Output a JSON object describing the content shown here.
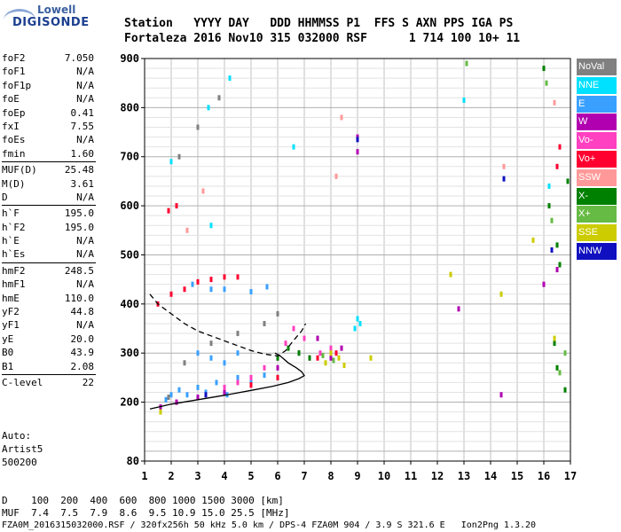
{
  "logo": {
    "line1": "Lowell",
    "line2": "DIGISONDE"
  },
  "header": {
    "row1": "Station   YYYY DAY   DDD HHMMSS P1  FFS S AXN PPS IGA PS",
    "row2": "Fortaleza 2016 Nov10 315 032000 RSF      1 714 100 10+ 11"
  },
  "params": [
    {
      "label": "foF2",
      "value": "7.050"
    },
    {
      "label": "foF1",
      "value": "N/A"
    },
    {
      "label": "foF1p",
      "value": "N/A"
    },
    {
      "label": "foE",
      "value": "N/A"
    },
    {
      "label": "foEp",
      "value": "0.41"
    },
    {
      "label": "fxI",
      "value": "7.55"
    },
    {
      "label": "foEs",
      "value": "N/A"
    },
    {
      "label": "fmin",
      "value": "1.60"
    },
    {
      "sep": true
    },
    {
      "label": "MUF(D)",
      "value": "25.48"
    },
    {
      "label": "M(D)",
      "value": "3.61"
    },
    {
      "label": "D",
      "value": "N/A"
    },
    {
      "sep": true
    },
    {
      "label": "h`F",
      "value": "195.0"
    },
    {
      "label": "h`F2",
      "value": "195.0"
    },
    {
      "label": "h`E",
      "value": "N/A"
    },
    {
      "label": "h`Es",
      "value": "N/A"
    },
    {
      "sep": true
    },
    {
      "label": "hmF2",
      "value": "248.5"
    },
    {
      "label": "hmF1",
      "value": "N/A"
    },
    {
      "label": "hmE",
      "value": "110.0"
    },
    {
      "label": "yF2",
      "value": "44.8"
    },
    {
      "label": "yF1",
      "value": "N/A"
    },
    {
      "label": "yE",
      "value": "20.0"
    },
    {
      "label": "B0",
      "value": "43.9"
    },
    {
      "label": "B1",
      "value": "2.08"
    },
    {
      "sep": true
    },
    {
      "label": "C-level",
      "value": "22"
    }
  ],
  "auto": {
    "line1": "Auto:",
    "line2": "Artist5",
    "line3": "500200"
  },
  "legend": [
    {
      "label": "NoVal",
      "color": "#808080"
    },
    {
      "label": "NNE",
      "color": "#00e0ff"
    },
    {
      "label": "E",
      "color": "#3aa0ff"
    },
    {
      "label": "W",
      "color": "#b000b0"
    },
    {
      "label": "Vo-",
      "color": "#ff40c0"
    },
    {
      "label": "Vo+",
      "color": "#ff0030"
    },
    {
      "label": "SSW",
      "color": "#ff9999"
    },
    {
      "label": "X-",
      "color": "#008000"
    },
    {
      "label": "X+",
      "color": "#66bb44"
    },
    {
      "label": "SSE",
      "color": "#cccc00"
    },
    {
      "label": "NNW",
      "color": "#1010c0"
    }
  ],
  "bottom": {
    "row1": "D    100  200  400  600  800 1000 1500 3000 [km]",
    "row2": "MUF  7.4  7.5  7.9  8.6  9.5 10.9 15.0 25.5 [MHz]"
  },
  "footer": "FZA0M_2016315032000.RSF / 320fx256h 50 kHz 5.0 km / DPS-4 FZA0M 904 / 3.9 S 321.6 E   Ion2Png 1.3.20",
  "chart_data": {
    "type": "scatter",
    "xlim": [
      1,
      17
    ],
    "ylim": [
      80,
      900
    ],
    "x_ticks": [
      1,
      2,
      3,
      4,
      5,
      6,
      7,
      8,
      9,
      10,
      11,
      12,
      13,
      14,
      15,
      16,
      17
    ],
    "y_ticks": [
      80,
      200,
      300,
      400,
      500,
      600,
      700,
      800,
      900
    ],
    "grid": true,
    "series": [
      {
        "name": "E",
        "color": "#3aa0ff",
        "points": [
          [
            1.8,
            205
          ],
          [
            2,
            215
          ],
          [
            2.3,
            225
          ],
          [
            2.6,
            215
          ],
          [
            3,
            230
          ],
          [
            3.3,
            220
          ],
          [
            3.7,
            240
          ],
          [
            4.1,
            215
          ],
          [
            4.5,
            250
          ],
          [
            5,
            240
          ],
          [
            5.5,
            255
          ],
          [
            6,
            250
          ],
          [
            3,
            300
          ],
          [
            3.5,
            290
          ],
          [
            4,
            280
          ],
          [
            4.5,
            300
          ],
          [
            2.8,
            440
          ],
          [
            3.5,
            430
          ],
          [
            4,
            430
          ],
          [
            5,
            425
          ],
          [
            5.6,
            435
          ]
        ]
      },
      {
        "name": "NNE",
        "color": "#00e0ff",
        "points": [
          [
            9,
            370
          ],
          [
            9.1,
            360
          ],
          [
            8.9,
            350
          ],
          [
            2,
            690
          ],
          [
            3.4,
            800
          ],
          [
            6.6,
            720
          ],
          [
            4.2,
            860
          ],
          [
            13,
            815
          ],
          [
            16.2,
            640
          ],
          [
            3.5,
            560
          ]
        ]
      },
      {
        "name": "W",
        "color": "#b000b0",
        "points": [
          [
            1.6,
            190
          ],
          [
            2.2,
            200
          ],
          [
            3,
            210
          ],
          [
            4,
            220
          ],
          [
            5,
            235
          ],
          [
            6,
            270
          ],
          [
            6.8,
            300
          ],
          [
            7.5,
            330
          ],
          [
            8,
            290
          ],
          [
            8.4,
            310
          ],
          [
            9,
            710
          ],
          [
            9,
            740
          ],
          [
            16,
            440
          ],
          [
            16.5,
            470
          ],
          [
            14.4,
            215
          ],
          [
            12.8,
            390
          ]
        ]
      },
      {
        "name": "Vo-",
        "color": "#ff40c0",
        "points": [
          [
            4,
            230
          ],
          [
            4.5,
            240
          ],
          [
            5,
            250
          ],
          [
            5.5,
            270
          ],
          [
            6,
            290
          ],
          [
            6.3,
            320
          ],
          [
            6.6,
            350
          ],
          [
            7,
            330
          ],
          [
            7.2,
            290
          ],
          [
            7.6,
            300
          ],
          [
            8,
            310
          ]
        ]
      },
      {
        "name": "Vo+",
        "color": "#ff0030",
        "points": [
          [
            1.5,
            400
          ],
          [
            2,
            420
          ],
          [
            2.5,
            430
          ],
          [
            3,
            445
          ],
          [
            3.5,
            450
          ],
          [
            4,
            455
          ],
          [
            4.5,
            455
          ],
          [
            1.9,
            590
          ],
          [
            2.2,
            600
          ],
          [
            5,
            235
          ],
          [
            6,
            250
          ],
          [
            7.5,
            290
          ],
          [
            8.2,
            300
          ],
          [
            16.5,
            680
          ],
          [
            16.6,
            720
          ]
        ]
      },
      {
        "name": "SSW",
        "color": "#ff9999",
        "points": [
          [
            2.6,
            550
          ],
          [
            3.2,
            630
          ],
          [
            8.2,
            660
          ],
          [
            8.4,
            780
          ],
          [
            14.5,
            680
          ],
          [
            16.4,
            810
          ]
        ]
      },
      {
        "name": "X-",
        "color": "#008000",
        "points": [
          [
            6,
            290
          ],
          [
            6.4,
            310
          ],
          [
            6.8,
            300
          ],
          [
            7.2,
            290
          ],
          [
            16,
            880
          ],
          [
            16.2,
            600
          ],
          [
            16.5,
            520
          ],
          [
            16.6,
            480
          ],
          [
            16.4,
            320
          ],
          [
            16.5,
            270
          ],
          [
            16.8,
            225
          ],
          [
            16.9,
            650
          ]
        ]
      },
      {
        "name": "X+",
        "color": "#66bb44",
        "points": [
          [
            7.7,
            295
          ],
          [
            8.1,
            285
          ],
          [
            16.1,
            850
          ],
          [
            16.3,
            570
          ],
          [
            16.6,
            260
          ],
          [
            16.8,
            300
          ],
          [
            13.1,
            890
          ]
        ]
      },
      {
        "name": "SSE",
        "color": "#cccc00",
        "points": [
          [
            7.8,
            280
          ],
          [
            8,
            300
          ],
          [
            8.3,
            290
          ],
          [
            8.5,
            275
          ],
          [
            9.5,
            290
          ],
          [
            14.4,
            420
          ],
          [
            15.6,
            530
          ],
          [
            16.4,
            330
          ],
          [
            12.5,
            460
          ],
          [
            1.6,
            180
          ]
        ]
      },
      {
        "name": "NNW",
        "color": "#1010c0",
        "points": [
          [
            3.3,
            215
          ],
          [
            9,
            735
          ],
          [
            14.5,
            655
          ],
          [
            16.3,
            510
          ]
        ]
      },
      {
        "name": "NoVal",
        "color": "#808080",
        "points": [
          [
            1.9,
            210
          ],
          [
            2.5,
            280
          ],
          [
            3.5,
            320
          ],
          [
            4.5,
            340
          ],
          [
            5.5,
            360
          ],
          [
            6,
            380
          ],
          [
            2.3,
            700
          ],
          [
            3,
            760
          ],
          [
            3.8,
            820
          ]
        ]
      }
    ],
    "lines": [
      {
        "style": "solid",
        "color": "#000000",
        "points": [
          [
            1.2,
            186
          ],
          [
            2,
            196
          ],
          [
            3,
            205
          ],
          [
            4,
            214
          ],
          [
            5,
            224
          ],
          [
            5.8,
            232
          ],
          [
            6.4,
            240
          ],
          [
            6.8,
            248
          ],
          [
            7,
            254
          ],
          [
            6.9,
            262
          ],
          [
            6.7,
            270
          ],
          [
            6.4,
            280
          ],
          [
            6.1,
            294
          ],
          [
            5.9,
            300
          ]
        ]
      },
      {
        "style": "dashed",
        "color": "#000000",
        "points": [
          [
            1.2,
            420
          ],
          [
            1.5,
            400
          ],
          [
            2,
            380
          ],
          [
            2.5,
            360
          ],
          [
            3,
            345
          ],
          [
            4,
            325
          ],
          [
            5,
            305
          ],
          [
            5.5,
            298
          ],
          [
            6,
            294
          ],
          [
            6.3,
            305
          ],
          [
            6.6,
            326
          ],
          [
            6.9,
            345
          ],
          [
            7.05,
            360
          ]
        ]
      }
    ]
  }
}
